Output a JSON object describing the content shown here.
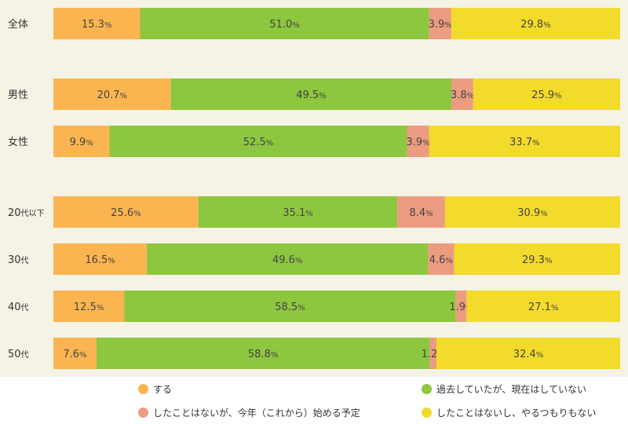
{
  "colors": {
    "background": "#f5f2e6",
    "series": [
      "#fbb550",
      "#8dc63f",
      "#ec9c80",
      "#f2db2a"
    ]
  },
  "chart_data": {
    "type": "bar",
    "orientation": "horizontal",
    "stacked": "100%",
    "value_unit": "%",
    "categories": [
      {
        "main": "全体",
        "sub": ""
      },
      {
        "main": "男性",
        "sub": ""
      },
      {
        "main": "女性",
        "sub": ""
      },
      {
        "main": "20",
        "sub": "代以下"
      },
      {
        "main": "30",
        "sub": "代"
      },
      {
        "main": "40",
        "sub": "代"
      },
      {
        "main": "50",
        "sub": "代"
      }
    ],
    "groups": [
      [
        0
      ],
      [
        1,
        2
      ],
      [
        3,
        4,
        5,
        6
      ]
    ],
    "series": [
      {
        "name": "する",
        "values": [
          15.3,
          20.7,
          9.9,
          25.6,
          16.5,
          12.5,
          7.6
        ]
      },
      {
        "name": "過去していたが、現在はしていない",
        "values": [
          51.0,
          49.5,
          52.5,
          35.1,
          49.6,
          58.5,
          58.8
        ]
      },
      {
        "name": "したことはないが、今年（これから）始める予定",
        "values": [
          3.9,
          3.8,
          3.9,
          8.4,
          4.6,
          1.9,
          1.2
        ]
      },
      {
        "name": "したことはないし、やるつもりもない",
        "values": [
          29.8,
          25.9,
          33.7,
          30.9,
          29.3,
          27.1,
          32.4
        ]
      }
    ],
    "legend_position": "bottom",
    "grid": false
  },
  "legend": {
    "items": [
      {
        "label": "する"
      },
      {
        "label": "過去していたが、現在はしていない"
      },
      {
        "label": "したことはないが、今年（これから）始める予定"
      },
      {
        "label": "したことはないし、やるつもりもない"
      }
    ]
  }
}
